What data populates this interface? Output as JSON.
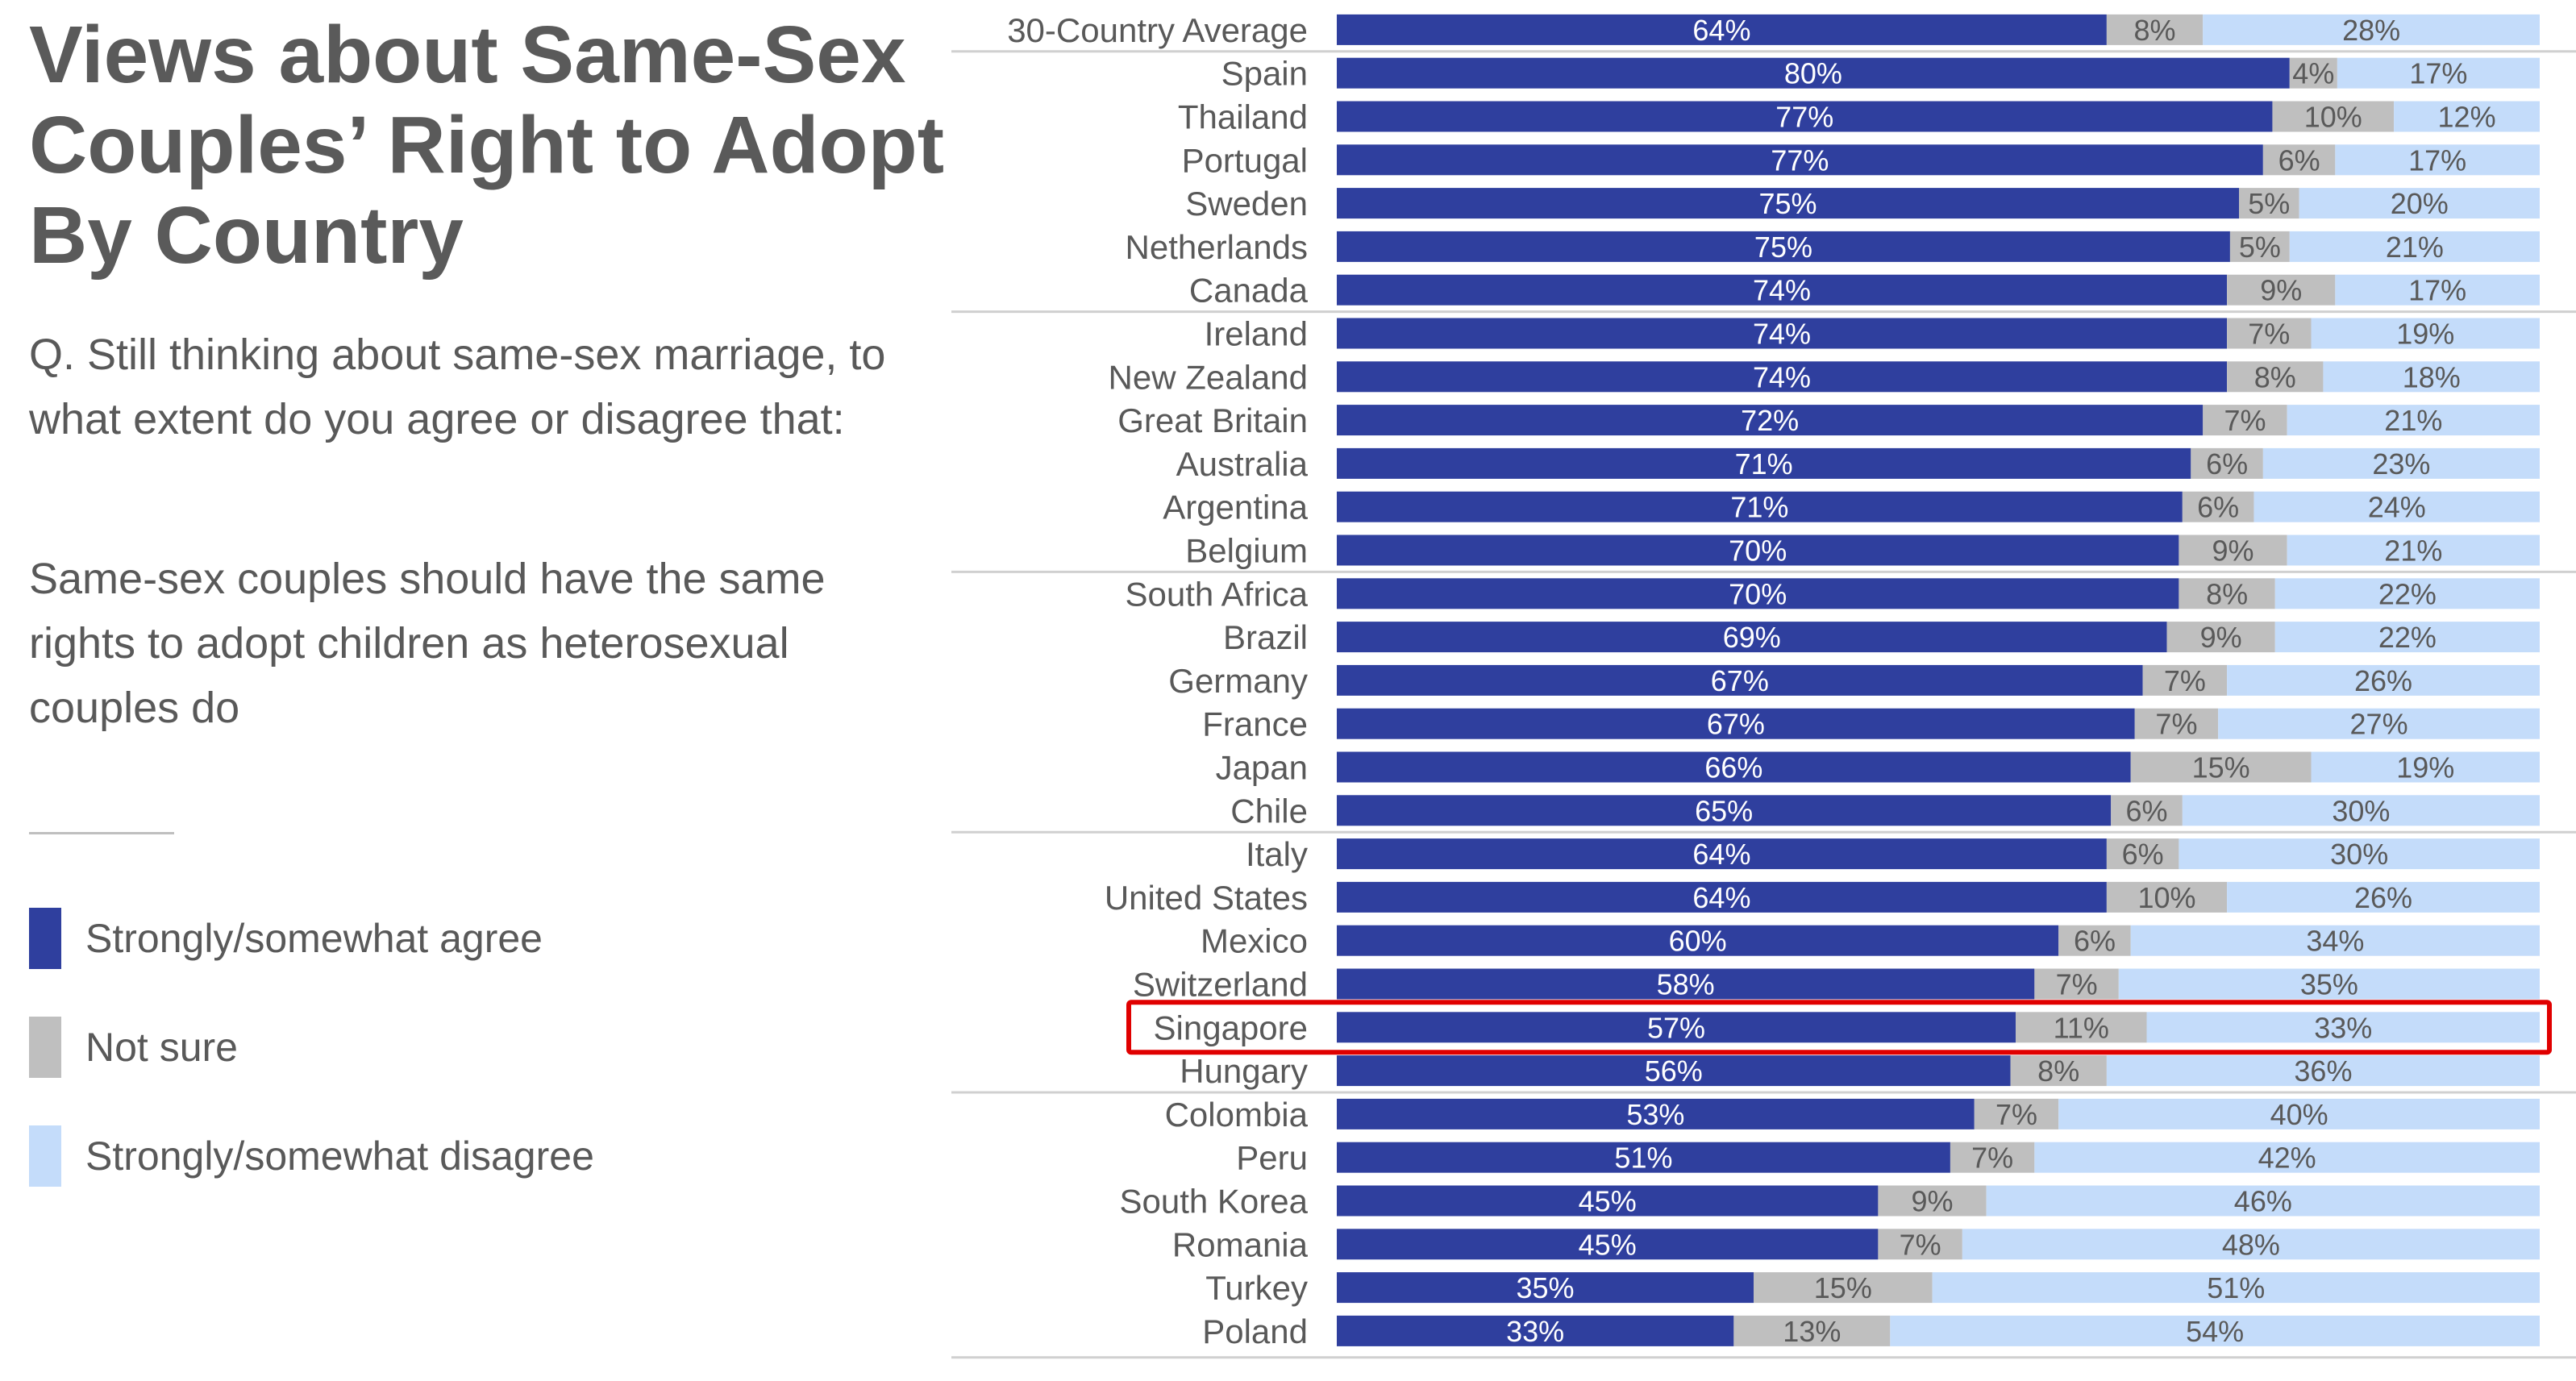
{
  "title": "Views about Same-Sex Couples’ Right to Adopt By Country",
  "question": "Q. Still thinking about same-sex marriage, to what extent do you agree or disagree that:",
  "statement": "Same-sex couples should have the same rights to adopt children as heterosexual couples do",
  "colors": {
    "agree": "#2f3f9e",
    "not_sure": "#bfbfbf",
    "disagree": "#c4dcfa",
    "highlight": "#e00000"
  },
  "legend": {
    "agree": "Strongly/somewhat agree",
    "not_sure": "Not sure",
    "disagree": "Strongly/somewhat disagree"
  },
  "chart_data": {
    "type": "bar",
    "orientation": "horizontal",
    "stacked": true,
    "value_unit": "%",
    "highlighted_category": "Singapore",
    "categories": [
      "30-Country Average",
      "Spain",
      "Thailand",
      "Portugal",
      "Sweden",
      "Netherlands",
      "Canada",
      "Ireland",
      "New Zealand",
      "Great Britain",
      "Australia",
      "Argentina",
      "Belgium",
      "South Africa",
      "Brazil",
      "Germany",
      "France",
      "Japan",
      "Chile",
      "Italy",
      "United States",
      "Mexico",
      "Switzerland",
      "Singapore",
      "Hungary",
      "Colombia",
      "Peru",
      "South Korea",
      "Romania",
      "Turkey",
      "Poland"
    ],
    "series": [
      {
        "name": "Strongly/somewhat agree",
        "values": [
          64,
          80,
          77,
          77,
          75,
          75,
          74,
          74,
          74,
          72,
          71,
          71,
          70,
          70,
          69,
          67,
          67,
          66,
          65,
          64,
          64,
          60,
          58,
          57,
          56,
          53,
          51,
          45,
          45,
          35,
          33
        ]
      },
      {
        "name": "Not sure",
        "values": [
          8,
          4,
          10,
          6,
          5,
          5,
          9,
          7,
          8,
          7,
          6,
          6,
          9,
          8,
          9,
          7,
          7,
          15,
          6,
          6,
          10,
          6,
          7,
          11,
          8,
          7,
          7,
          9,
          7,
          15,
          13
        ]
      },
      {
        "name": "Strongly/somewhat disagree",
        "values": [
          28,
          17,
          12,
          17,
          20,
          21,
          17,
          19,
          18,
          21,
          23,
          24,
          21,
          22,
          22,
          26,
          27,
          19,
          30,
          30,
          26,
          34,
          35,
          33,
          36,
          40,
          42,
          46,
          48,
          51,
          54
        ]
      }
    ],
    "xlim": [
      0,
      100
    ],
    "grid": false,
    "legend_position": "left"
  }
}
